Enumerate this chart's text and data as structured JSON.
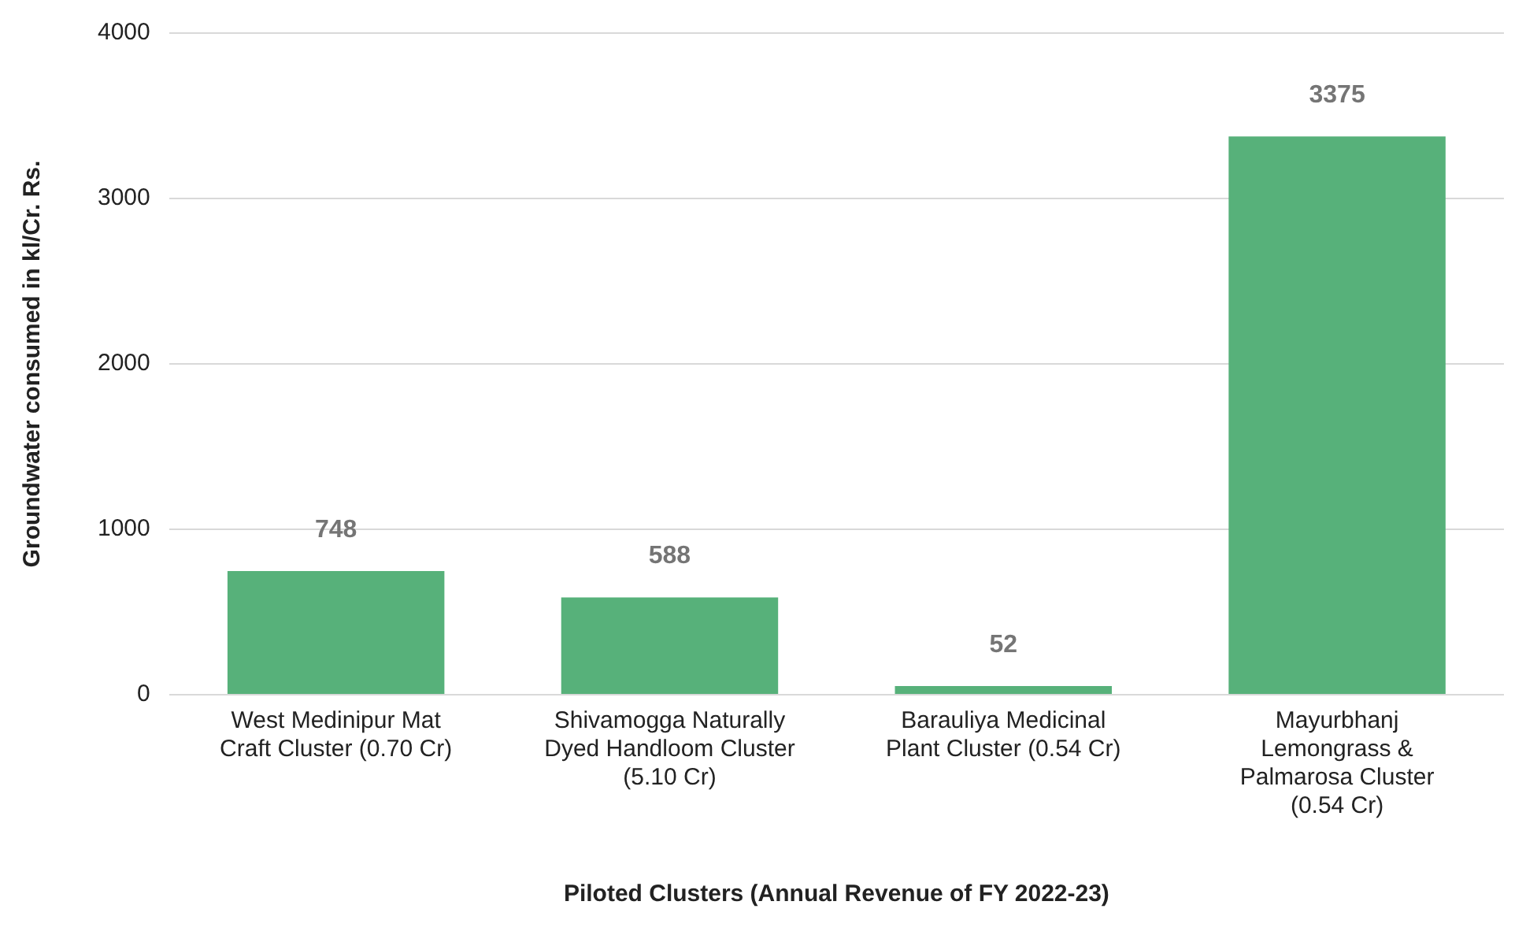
{
  "chart_data": {
    "type": "bar",
    "xlabel": "Piloted Clusters (Annual Revenue of FY 2022-23)",
    "ylabel": "Groundwater consumed in kl/Cr. Rs.",
    "categories": [
      "West Medinipur Mat Craft Cluster (0.70 Cr)",
      "Shivamogga Naturally Dyed Handloom Cluster (5.10 Cr)",
      "Barauliya Medicinal Plant Cluster (0.54 Cr)",
      "Mayurbhanj Lemongrass & Palmarosa Cluster (0.54 Cr)"
    ],
    "values": [
      748,
      588,
      52,
      3375
    ],
    "color": "#57b17a",
    "ylim": [
      0,
      4000
    ],
    "yticks": [
      0,
      1000,
      2000,
      3000,
      4000
    ],
    "grid": "y",
    "data_labels": true
  }
}
